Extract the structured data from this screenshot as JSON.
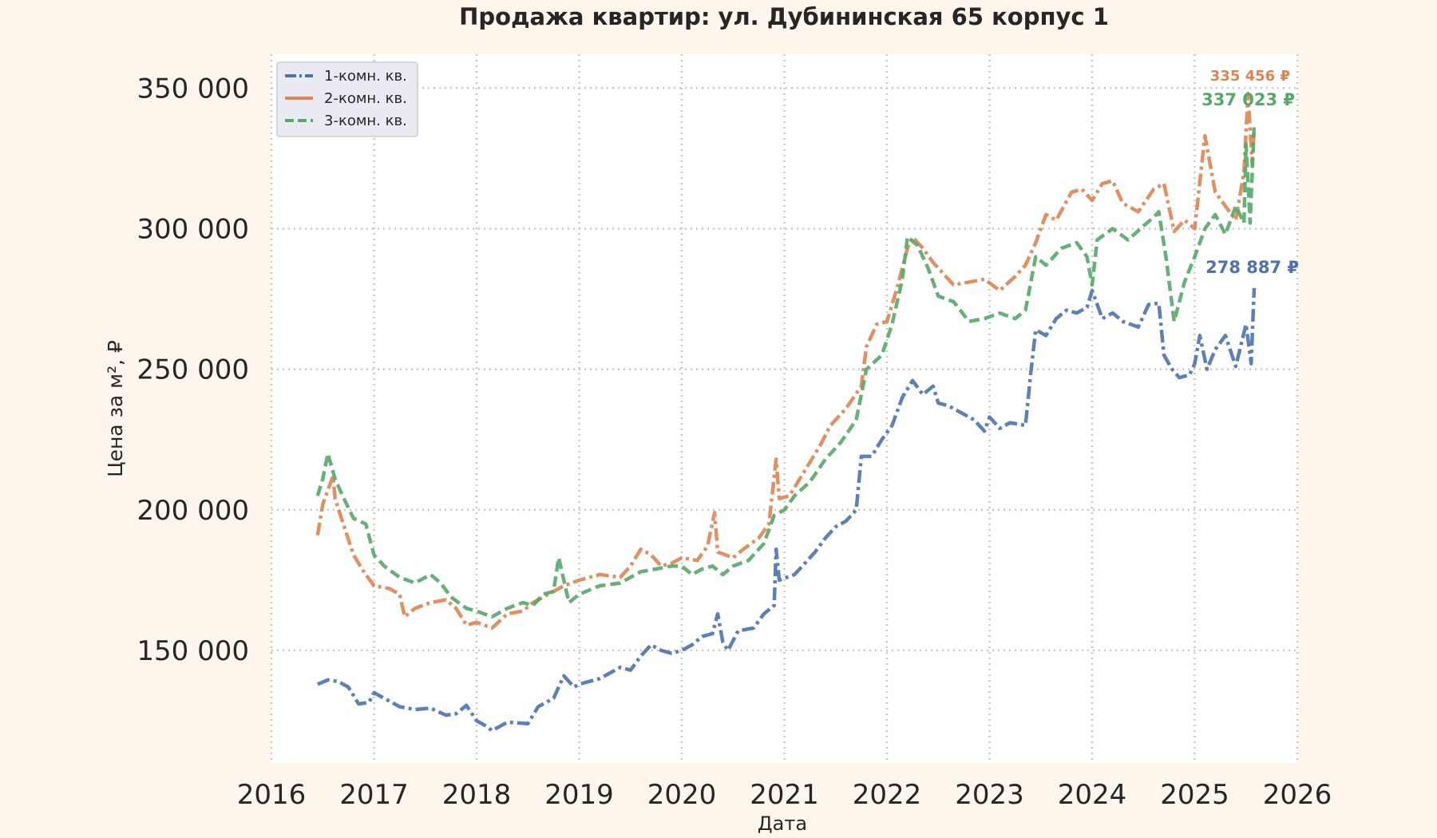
{
  "chart_data": {
    "type": "line",
    "title": "Продажа квартир: ул. Дубининская 65 корпус 1",
    "xlabel": "Дата",
    "ylabel": "Цена за м², ₽",
    "xlim": [
      2016,
      2026
    ],
    "ylim": [
      110000,
      362000
    ],
    "x_ticks": [
      "2016",
      "2017",
      "2018",
      "2019",
      "2020",
      "2021",
      "2022",
      "2023",
      "2024",
      "2025",
      "2026"
    ],
    "y_ticks": [
      150000,
      200000,
      250000,
      300000,
      350000
    ],
    "y_tick_labels": [
      "150 000",
      "200 000",
      "250 000",
      "300 000",
      "350 000"
    ],
    "grid": true,
    "legend_position": "top-left",
    "series": [
      {
        "name": "1-комн. кв.",
        "color": "#4c72b0",
        "dash": "dash-dot",
        "last_label": "278 887 ₽",
        "points": [
          [
            2016.45,
            138000
          ],
          [
            2016.55,
            139500
          ],
          [
            2016.65,
            139000
          ],
          [
            2016.75,
            137000
          ],
          [
            2016.85,
            131000
          ],
          [
            2016.95,
            131500
          ],
          [
            2017.0,
            135000
          ],
          [
            2017.1,
            133000
          ],
          [
            2017.25,
            130000
          ],
          [
            2017.4,
            129000
          ],
          [
            2017.55,
            129500
          ],
          [
            2017.7,
            127000
          ],
          [
            2017.8,
            127500
          ],
          [
            2017.9,
            130500
          ],
          [
            2018.0,
            125000
          ],
          [
            2018.1,
            123000
          ],
          [
            2018.15,
            121500
          ],
          [
            2018.3,
            124500
          ],
          [
            2018.5,
            124000
          ],
          [
            2018.6,
            130000
          ],
          [
            2018.75,
            133000
          ],
          [
            2018.85,
            141000
          ],
          [
            2018.95,
            137000
          ],
          [
            2019.0,
            138000
          ],
          [
            2019.2,
            140000
          ],
          [
            2019.4,
            144000
          ],
          [
            2019.5,
            143000
          ],
          [
            2019.6,
            148000
          ],
          [
            2019.7,
            152000
          ],
          [
            2019.8,
            150000
          ],
          [
            2019.9,
            149000
          ],
          [
            2020.0,
            150000
          ],
          [
            2020.1,
            152000
          ],
          [
            2020.2,
            155000
          ],
          [
            2020.3,
            156000
          ],
          [
            2020.35,
            163000
          ],
          [
            2020.4,
            153000
          ],
          [
            2020.45,
            150000
          ],
          [
            2020.55,
            157000
          ],
          [
            2020.7,
            158000
          ],
          [
            2020.8,
            163000
          ],
          [
            2020.9,
            166000
          ],
          [
            2020.92,
            186000
          ],
          [
            2020.95,
            175000
          ],
          [
            2021.1,
            177000
          ],
          [
            2021.2,
            181000
          ],
          [
            2021.3,
            185000
          ],
          [
            2021.4,
            190000
          ],
          [
            2021.5,
            194000
          ],
          [
            2021.6,
            196000
          ],
          [
            2021.7,
            200000
          ],
          [
            2021.75,
            219000
          ],
          [
            2021.85,
            219000
          ],
          [
            2021.95,
            225000
          ],
          [
            2022.05,
            230000
          ],
          [
            2022.15,
            240000
          ],
          [
            2022.25,
            246000
          ],
          [
            2022.35,
            241000
          ],
          [
            2022.45,
            244000
          ],
          [
            2022.5,
            238000
          ],
          [
            2022.6,
            237000
          ],
          [
            2022.75,
            234000
          ],
          [
            2022.85,
            232000
          ],
          [
            2022.95,
            228000
          ],
          [
            2023.0,
            233000
          ],
          [
            2023.1,
            229000
          ],
          [
            2023.2,
            231000
          ],
          [
            2023.35,
            230000
          ],
          [
            2023.4,
            248000
          ],
          [
            2023.45,
            264000
          ],
          [
            2023.55,
            262000
          ],
          [
            2023.65,
            268000
          ],
          [
            2023.75,
            271000
          ],
          [
            2023.85,
            270000
          ],
          [
            2023.95,
            272000
          ],
          [
            2024.0,
            278000
          ],
          [
            2024.1,
            268000
          ],
          [
            2024.2,
            270000
          ],
          [
            2024.3,
            267000
          ],
          [
            2024.45,
            265000
          ],
          [
            2024.55,
            273000
          ],
          [
            2024.65,
            273500
          ],
          [
            2024.7,
            255000
          ],
          [
            2024.78,
            250000
          ],
          [
            2024.85,
            247000
          ],
          [
            2024.95,
            248000
          ],
          [
            2025.0,
            252000
          ],
          [
            2025.05,
            262000
          ],
          [
            2025.12,
            250000
          ],
          [
            2025.2,
            257000
          ],
          [
            2025.3,
            262000
          ],
          [
            2025.4,
            251000
          ],
          [
            2025.5,
            266000
          ],
          [
            2025.55,
            252000
          ],
          [
            2025.58,
            278887
          ]
        ]
      },
      {
        "name": "2-комн. кв.",
        "color": "#dd8452",
        "dash": "dash-dot",
        "last_label": "335 456 ₽",
        "points": [
          [
            2016.45,
            191000
          ],
          [
            2016.5,
            202000
          ],
          [
            2016.6,
            212000
          ],
          [
            2016.62,
            204000
          ],
          [
            2016.7,
            195000
          ],
          [
            2016.8,
            184000
          ],
          [
            2016.9,
            178000
          ],
          [
            2017.0,
            173000
          ],
          [
            2017.15,
            172000
          ],
          [
            2017.25,
            170000
          ],
          [
            2017.3,
            162000
          ],
          [
            2017.4,
            165000
          ],
          [
            2017.55,
            167000
          ],
          [
            2017.7,
            168000
          ],
          [
            2017.8,
            165000
          ],
          [
            2017.9,
            159000
          ],
          [
            2018.0,
            160000
          ],
          [
            2018.15,
            158000
          ],
          [
            2018.3,
            163000
          ],
          [
            2018.45,
            164000
          ],
          [
            2018.55,
            167000
          ],
          [
            2018.7,
            170000
          ],
          [
            2018.85,
            173000
          ],
          [
            2019.0,
            175000
          ],
          [
            2019.2,
            177000
          ],
          [
            2019.4,
            176000
          ],
          [
            2019.5,
            180000
          ],
          [
            2019.6,
            186000
          ],
          [
            2019.7,
            184000
          ],
          [
            2019.8,
            180000
          ],
          [
            2019.9,
            181000
          ],
          [
            2020.0,
            183000
          ],
          [
            2020.15,
            182000
          ],
          [
            2020.25,
            187000
          ],
          [
            2020.32,
            199000
          ],
          [
            2020.35,
            185000
          ],
          [
            2020.5,
            183000
          ],
          [
            2020.6,
            186000
          ],
          [
            2020.75,
            190000
          ],
          [
            2020.85,
            195000
          ],
          [
            2020.92,
            218000
          ],
          [
            2020.95,
            204000
          ],
          [
            2021.05,
            205000
          ],
          [
            2021.2,
            214000
          ],
          [
            2021.35,
            223000
          ],
          [
            2021.45,
            230000
          ],
          [
            2021.6,
            236000
          ],
          [
            2021.75,
            244000
          ],
          [
            2021.8,
            258000
          ],
          [
            2021.9,
            266000
          ],
          [
            2022.0,
            267000
          ],
          [
            2022.1,
            279000
          ],
          [
            2022.2,
            293000
          ],
          [
            2022.25,
            297000
          ],
          [
            2022.35,
            293000
          ],
          [
            2022.45,
            288000
          ],
          [
            2022.55,
            284000
          ],
          [
            2022.65,
            280000
          ],
          [
            2022.8,
            281000
          ],
          [
            2022.95,
            282000
          ],
          [
            2023.1,
            278000
          ],
          [
            2023.25,
            283000
          ],
          [
            2023.35,
            287000
          ],
          [
            2023.45,
            295000
          ],
          [
            2023.55,
            305000
          ],
          [
            2023.65,
            303000
          ],
          [
            2023.8,
            313000
          ],
          [
            2023.9,
            314000
          ],
          [
            2024.0,
            310000
          ],
          [
            2024.1,
            316000
          ],
          [
            2024.2,
            317000
          ],
          [
            2024.3,
            309000
          ],
          [
            2024.45,
            306000
          ],
          [
            2024.6,
            314000
          ],
          [
            2024.7,
            316000
          ],
          [
            2024.8,
            299000
          ],
          [
            2024.9,
            303000
          ],
          [
            2025.0,
            300000
          ],
          [
            2025.1,
            333000
          ],
          [
            2025.2,
            313000
          ],
          [
            2025.3,
            308000
          ],
          [
            2025.4,
            303000
          ],
          [
            2025.48,
            320000
          ],
          [
            2025.52,
            348000
          ],
          [
            2025.56,
            323000
          ],
          [
            2025.58,
            335456
          ]
        ]
      },
      {
        "name": "3-комн. кв.",
        "color": "#55a868",
        "dash": "dashed",
        "last_label": "337 023 ₽",
        "points": [
          [
            2016.45,
            205000
          ],
          [
            2016.5,
            211000
          ],
          [
            2016.55,
            220000
          ],
          [
            2016.62,
            211000
          ],
          [
            2016.72,
            203000
          ],
          [
            2016.8,
            197000
          ],
          [
            2016.92,
            195000
          ],
          [
            2017.0,
            184000
          ],
          [
            2017.1,
            180000
          ],
          [
            2017.25,
            176000
          ],
          [
            2017.4,
            174000
          ],
          [
            2017.55,
            177000
          ],
          [
            2017.65,
            174000
          ],
          [
            2017.75,
            169000
          ],
          [
            2017.9,
            165000
          ],
          [
            2018.0,
            164000
          ],
          [
            2018.15,
            162000
          ],
          [
            2018.3,
            165000
          ],
          [
            2018.45,
            167000
          ],
          [
            2018.55,
            166000
          ],
          [
            2018.65,
            170000
          ],
          [
            2018.75,
            171000
          ],
          [
            2018.8,
            183000
          ],
          [
            2018.9,
            167000
          ],
          [
            2019.0,
            170000
          ],
          [
            2019.2,
            173000
          ],
          [
            2019.4,
            174000
          ],
          [
            2019.5,
            176000
          ],
          [
            2019.6,
            178000
          ],
          [
            2019.75,
            179000
          ],
          [
            2019.9,
            180000
          ],
          [
            2020.0,
            180000
          ],
          [
            2020.1,
            177000
          ],
          [
            2020.2,
            179000
          ],
          [
            2020.3,
            180000
          ],
          [
            2020.4,
            177000
          ],
          [
            2020.5,
            180000
          ],
          [
            2020.65,
            182000
          ],
          [
            2020.8,
            188000
          ],
          [
            2020.9,
            198000
          ],
          [
            2021.0,
            200000
          ],
          [
            2021.1,
            205000
          ],
          [
            2021.25,
            210000
          ],
          [
            2021.4,
            218000
          ],
          [
            2021.55,
            224000
          ],
          [
            2021.7,
            232000
          ],
          [
            2021.8,
            250000
          ],
          [
            2021.95,
            255000
          ],
          [
            2022.05,
            266000
          ],
          [
            2022.15,
            282000
          ],
          [
            2022.2,
            297000
          ],
          [
            2022.3,
            294000
          ],
          [
            2022.4,
            286000
          ],
          [
            2022.5,
            276000
          ],
          [
            2022.65,
            274000
          ],
          [
            2022.8,
            267000
          ],
          [
            2022.95,
            268000
          ],
          [
            2023.1,
            270000
          ],
          [
            2023.25,
            268000
          ],
          [
            2023.35,
            271000
          ],
          [
            2023.45,
            290000
          ],
          [
            2023.55,
            287000
          ],
          [
            2023.7,
            293000
          ],
          [
            2023.85,
            295000
          ],
          [
            2023.95,
            290000
          ],
          [
            2024.0,
            280000
          ],
          [
            2024.05,
            296000
          ],
          [
            2024.2,
            300000
          ],
          [
            2024.35,
            296000
          ],
          [
            2024.5,
            301000
          ],
          [
            2024.6,
            304000
          ],
          [
            2024.65,
            306000
          ],
          [
            2024.72,
            290000
          ],
          [
            2024.8,
            267000
          ],
          [
            2024.9,
            281000
          ],
          [
            2025.0,
            290000
          ],
          [
            2025.1,
            300000
          ],
          [
            2025.2,
            305000
          ],
          [
            2025.3,
            298000
          ],
          [
            2025.4,
            308000
          ],
          [
            2025.48,
            302000
          ],
          [
            2025.5,
            330000
          ],
          [
            2025.54,
            302000
          ],
          [
            2025.58,
            337023
          ]
        ]
      }
    ]
  }
}
